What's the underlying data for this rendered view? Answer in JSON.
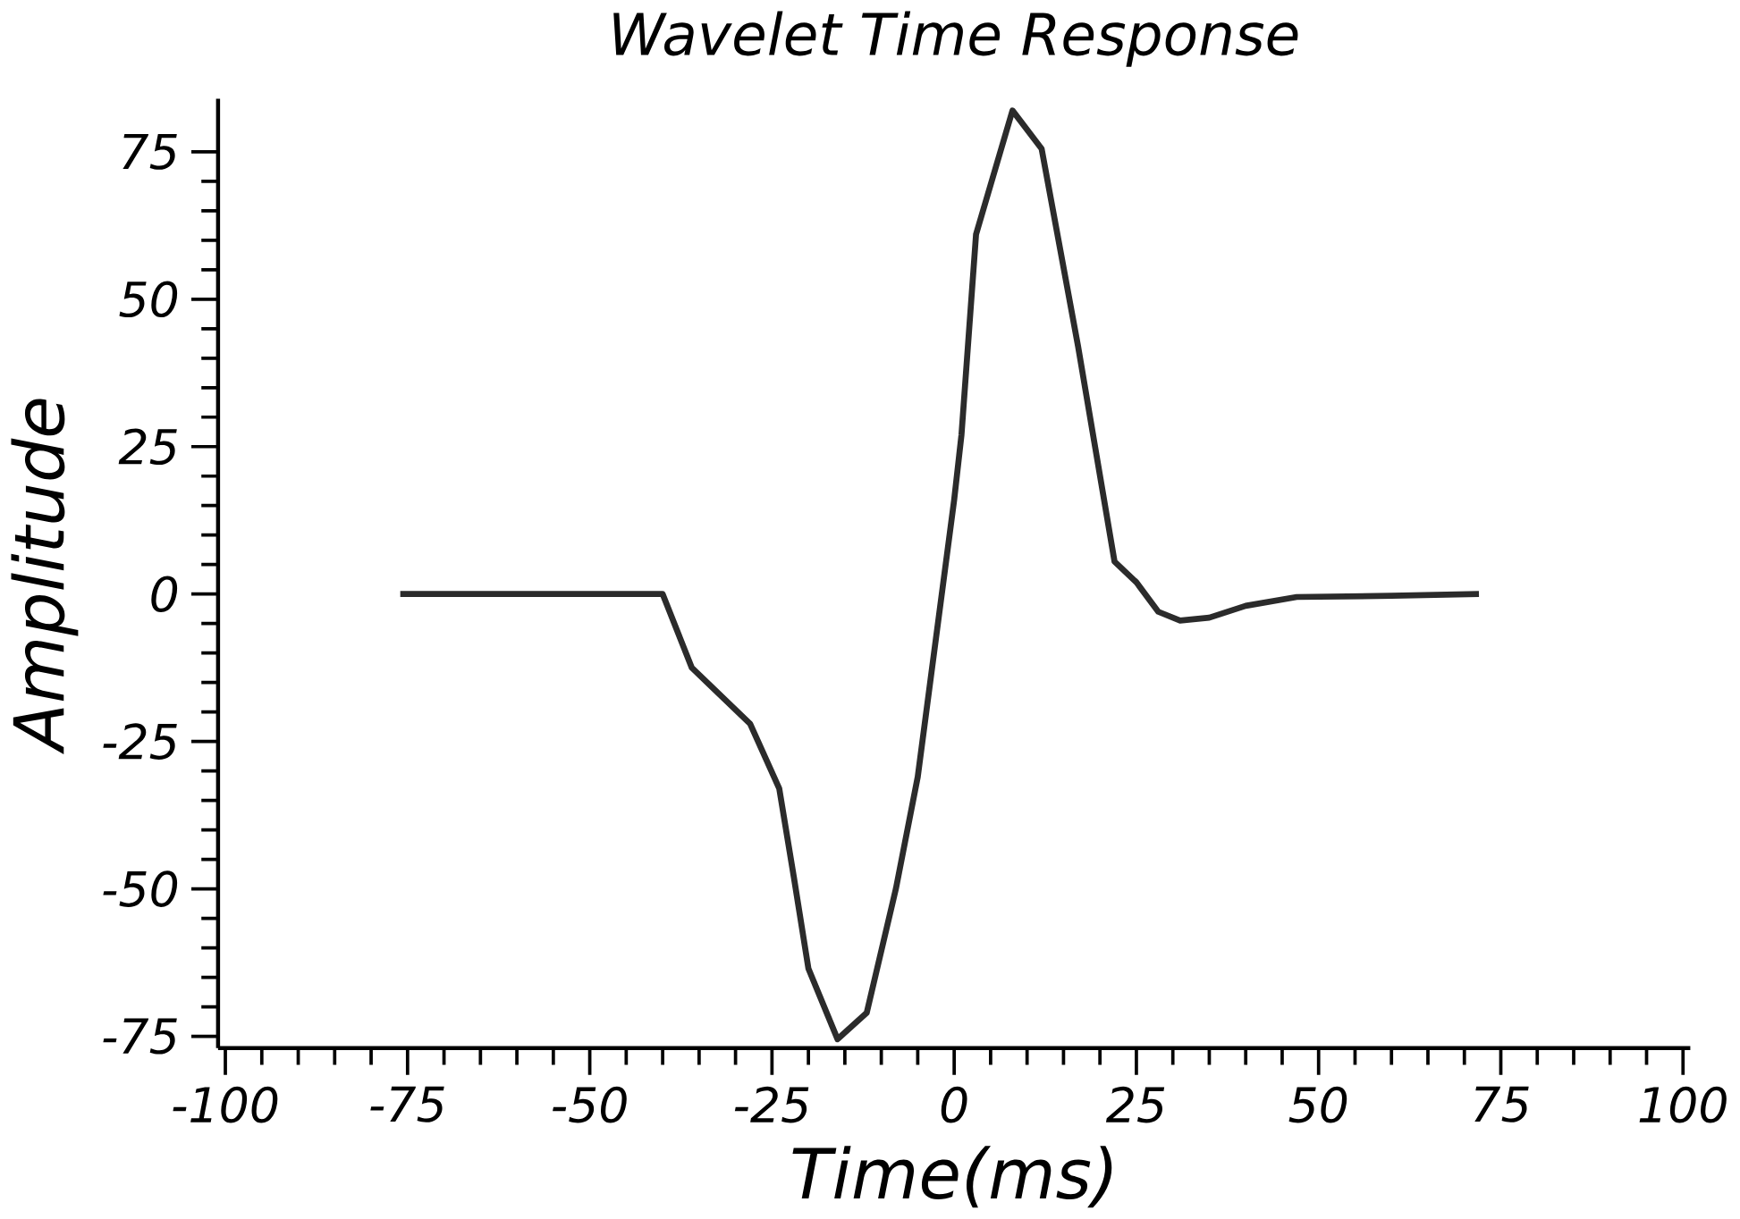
{
  "chart_data": {
    "type": "line",
    "title": "Wavelet Time Response",
    "xlabel": "Time(ms)",
    "ylabel": "Amplitude",
    "xlim": [
      -101,
      101
    ],
    "ylim": [
      -77,
      84
    ],
    "xticks": [
      -100,
      -75,
      -50,
      -25,
      0,
      25,
      50,
      75,
      100
    ],
    "yticks": [
      -75,
      -50,
      -25,
      0,
      25,
      50,
      75
    ],
    "grid": false,
    "marker": "none",
    "line_style": "solid",
    "series": [
      {
        "color": "#2b2b2b",
        "x": [
          -76,
          -55,
          -40,
          -36,
          -28,
          -24,
          -22,
          -20,
          -16,
          -12,
          -8,
          -5,
          0,
          1,
          3,
          8,
          12,
          17,
          22,
          25,
          28,
          31,
          35,
          40,
          47,
          60,
          72
        ],
        "values": [
          0,
          0,
          0,
          -12.5,
          -22,
          -33,
          -48,
          -63.5,
          -75.5,
          -71,
          -50,
          -31,
          16,
          27,
          61,
          82,
          75.5,
          42,
          5.5,
          2,
          -3,
          -4.5,
          -4,
          -2,
          -0.5,
          -0.3,
          0
        ]
      }
    ]
  }
}
